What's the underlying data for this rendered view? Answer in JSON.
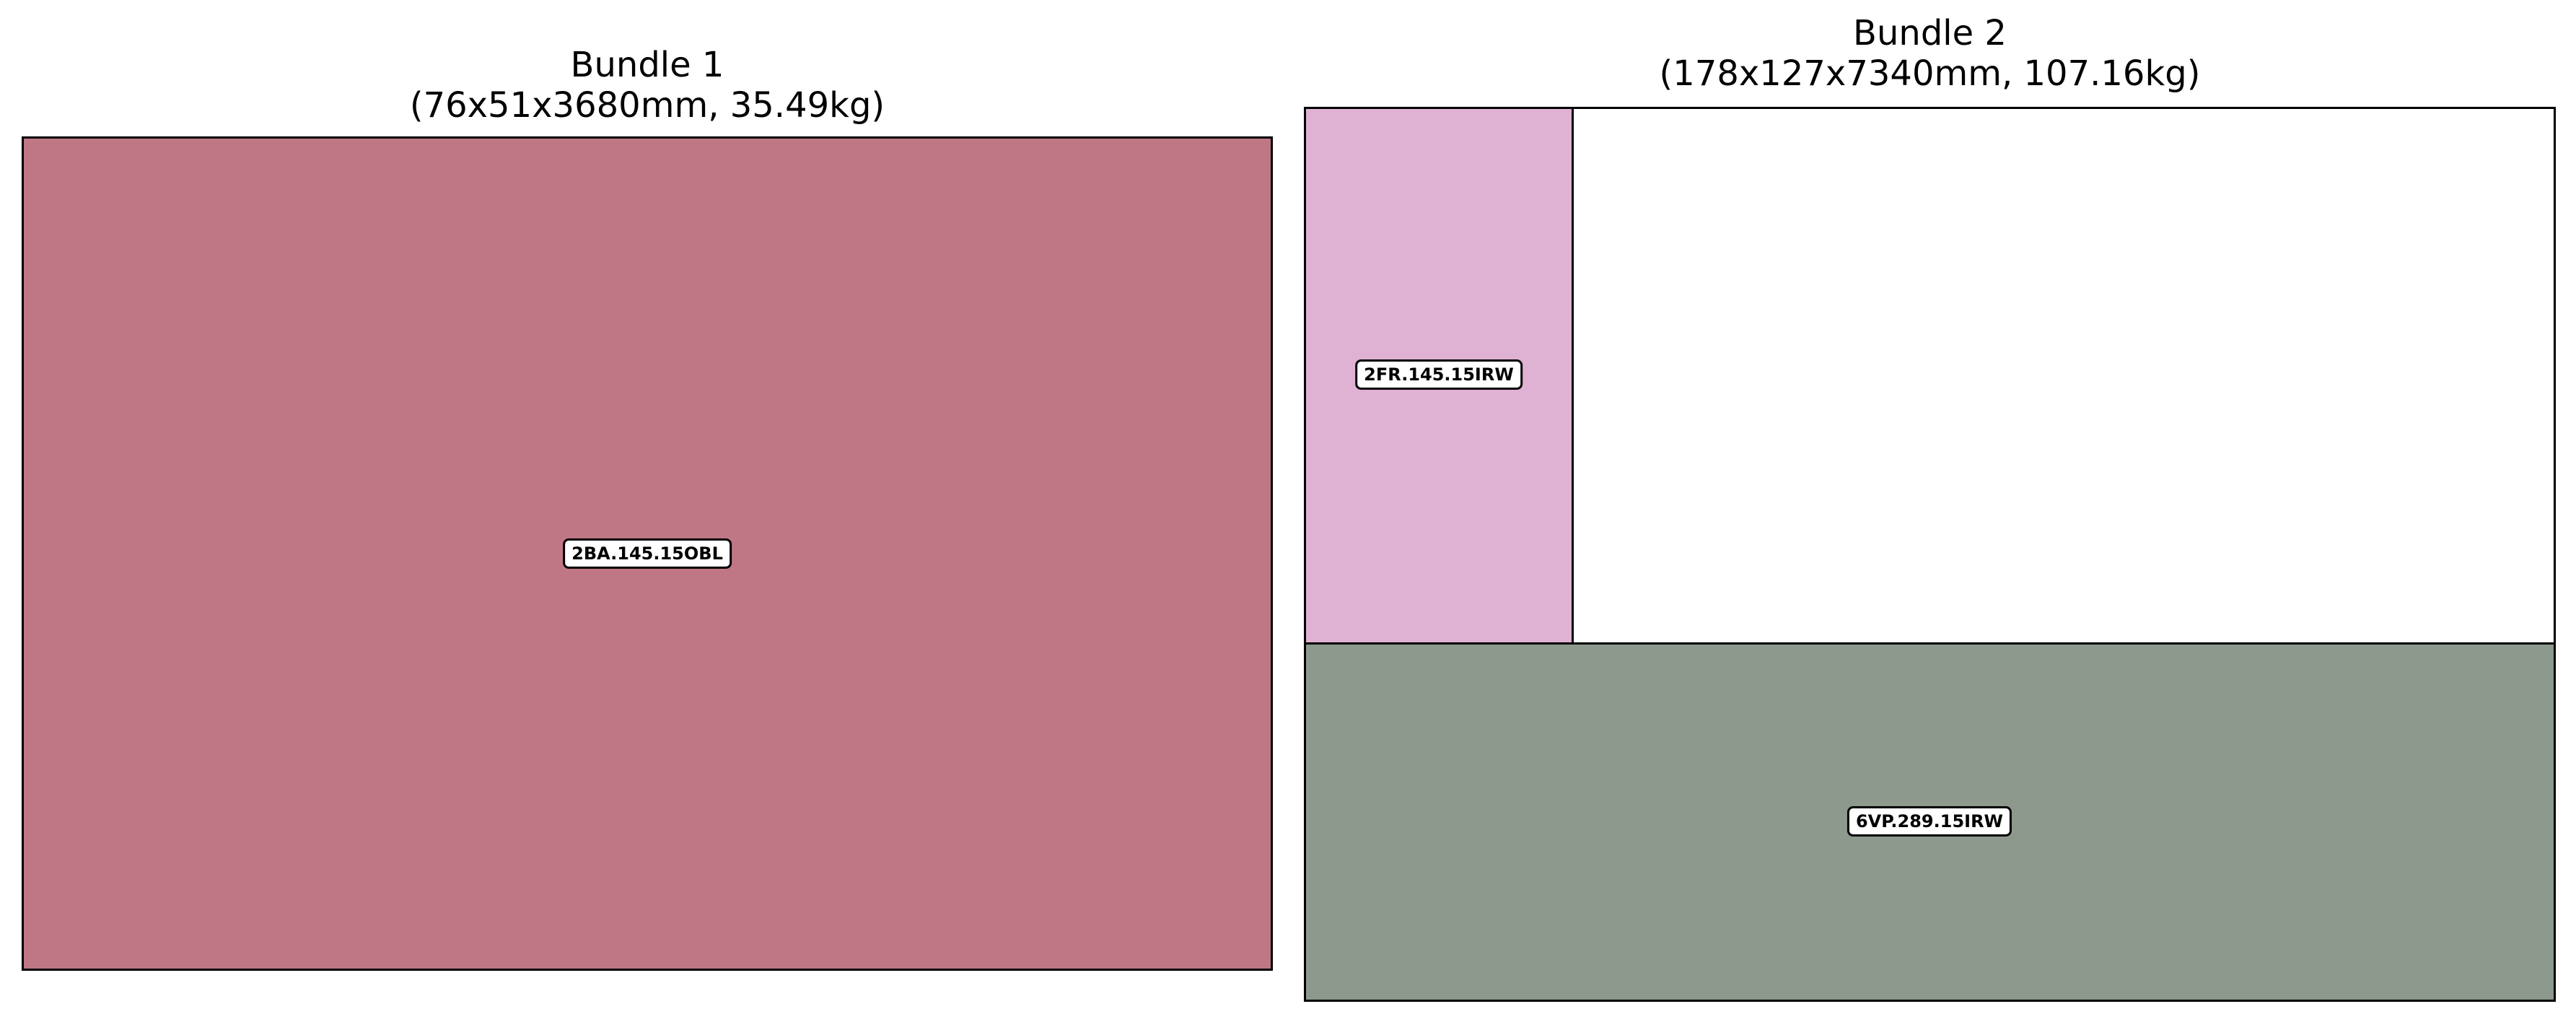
{
  "bundles": [
    {
      "title": "Bundle 1",
      "subtitle": "(76x51x3680mm, 35.49kg)",
      "pieces": [
        {
          "label": "2BA.145.15OBL",
          "color": "#c07785"
        }
      ]
    },
    {
      "title": "Bundle 2",
      "subtitle": "(178x127x7340mm, 107.16kg)",
      "pieces": [
        {
          "label": "2FR.145.15IRW",
          "color": "#dfb2d4"
        },
        {
          "label": "",
          "color": "#ffffff"
        },
        {
          "label": "6VP.289.15IRW",
          "color": "#8e998e"
        }
      ]
    }
  ]
}
